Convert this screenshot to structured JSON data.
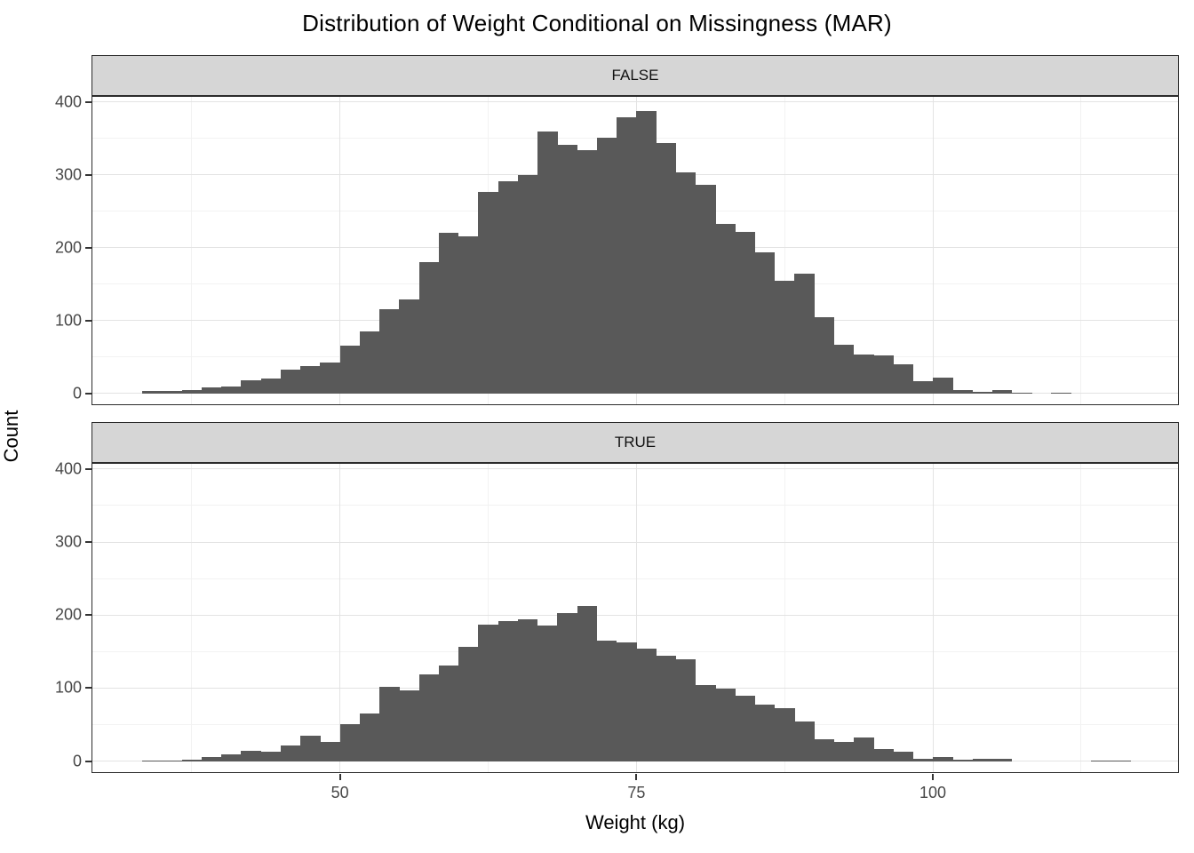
{
  "header": {
    "title": "Distribution of Weight Conditional on Missingness (MAR)"
  },
  "chart_data": {
    "type": "bar",
    "variant": "faceted-histogram",
    "title": "Distribution of Weight Conditional on Missingness (MAR)",
    "xlabel": "Weight (kg)",
    "ylabel": "Count",
    "facet_labels": [
      "FALSE",
      "TRUE"
    ],
    "x_ticks": [
      50,
      75,
      100
    ],
    "x_minor_ticks": [
      37.5,
      62.5,
      87.5,
      112.5
    ],
    "y_ticks": [
      0,
      100,
      200,
      300,
      400
    ],
    "y_minor_ticks": [
      50,
      150,
      250,
      350
    ],
    "xlim": [
      29.05,
      120.75
    ],
    "ylim": [
      -16.3,
      408.3
    ],
    "grid": true,
    "legend_position": "none",
    "bin_start": 33.33,
    "bin_width": 1.6667,
    "series": [
      {
        "name": "FALSE",
        "counts": [
          3,
          3,
          5,
          8,
          9,
          18,
          20,
          33,
          38,
          42,
          65,
          85,
          116,
          129,
          180,
          221,
          215,
          277,
          291,
          300,
          360,
          341,
          334,
          351,
          379,
          387,
          344,
          303,
          286,
          232,
          222,
          193,
          155,
          164,
          104,
          67,
          53,
          52,
          40,
          17,
          21,
          4,
          2,
          4,
          1,
          0,
          1
        ]
      },
      {
        "name": "TRUE",
        "counts": [
          1,
          1,
          2,
          6,
          9,
          14,
          13,
          22,
          35,
          26,
          51,
          65,
          102,
          97,
          119,
          131,
          156,
          187,
          192,
          194,
          186,
          203,
          212,
          165,
          162,
          154,
          144,
          140,
          104,
          99,
          89,
          77,
          73,
          54,
          30,
          26,
          32,
          17,
          13,
          3,
          6,
          2,
          3,
          3,
          0,
          0,
          0,
          0,
          1,
          1
        ]
      }
    ],
    "style": {
      "bar_color": "#595959",
      "strip_background": "#d6d6d6",
      "panel_background": "#ffffff",
      "grid_major_color": "#e3e3e3",
      "grid_minor_color": "#f2f2f2",
      "border_color": "#2b2b2b",
      "axis_text_color": "#474747",
      "title_color": "#000000"
    }
  }
}
